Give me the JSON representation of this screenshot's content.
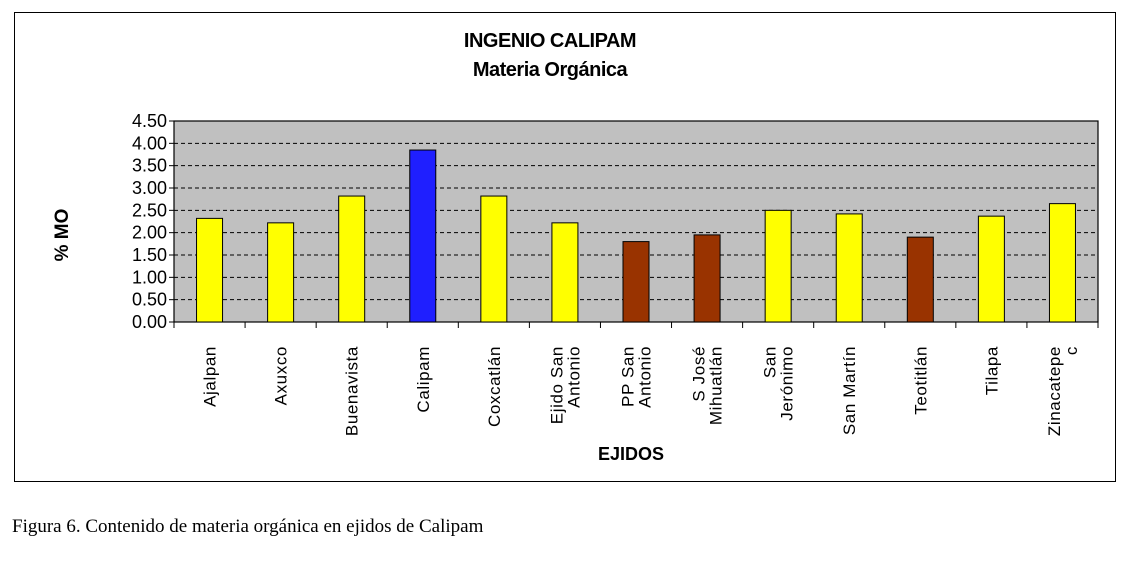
{
  "chart_data": {
    "type": "bar",
    "title": "INGENIO CALIPAM",
    "subtitle": "Materia Orgánica",
    "xlabel": "EJIDOS",
    "ylabel": "% MO",
    "ylim": [
      0,
      4.5
    ],
    "yticks": [
      "0.00",
      "0.50",
      "1.00",
      "1.50",
      "2.00",
      "2.50",
      "3.00",
      "3.50",
      "4.00",
      "4.50"
    ],
    "grid": true,
    "categories": [
      {
        "label": "Ajalpan",
        "lines": [
          "Ajalpan"
        ]
      },
      {
        "label": "Axuxco",
        "lines": [
          "Axuxco"
        ]
      },
      {
        "label": "Buenavista",
        "lines": [
          "Buenavista"
        ]
      },
      {
        "label": "Calipam",
        "lines": [
          "Calipam"
        ]
      },
      {
        "label": "Coxcatlán",
        "lines": [
          "Coxcatlán"
        ]
      },
      {
        "label": "Ejido San Antonio",
        "lines": [
          "Ejido San",
          "Antonio"
        ]
      },
      {
        "label": "PP San Antonio",
        "lines": [
          "PP San",
          "Antonio"
        ]
      },
      {
        "label": "S José Mihuatlán",
        "lines": [
          "S José",
          "Mihuatlán"
        ]
      },
      {
        "label": "San Jerónimo",
        "lines": [
          "San",
          "Jerónimo"
        ]
      },
      {
        "label": "San Martín",
        "lines": [
          "San Martín"
        ]
      },
      {
        "label": "Teotitlán",
        "lines": [
          "Teotitlán"
        ]
      },
      {
        "label": "Tilapa",
        "lines": [
          "Tilapa"
        ]
      },
      {
        "label": "Zinacatepec",
        "lines": [
          "Zinacatepe",
          "c"
        ]
      }
    ],
    "values": [
      2.32,
      2.22,
      2.82,
      3.85,
      2.82,
      2.22,
      1.8,
      1.95,
      2.5,
      2.42,
      1.9,
      2.37,
      2.65
    ],
    "bar_colors": [
      "#ffff00",
      "#ffff00",
      "#ffff00",
      "#1f1fff",
      "#ffff00",
      "#ffff00",
      "#993300",
      "#993300",
      "#ffff00",
      "#ffff00",
      "#993300",
      "#ffff00",
      "#ffff00"
    ],
    "plot_background": "#c0c0c0"
  },
  "caption": "Figura 6. Contenido de materia orgánica en ejidos de Calipam"
}
